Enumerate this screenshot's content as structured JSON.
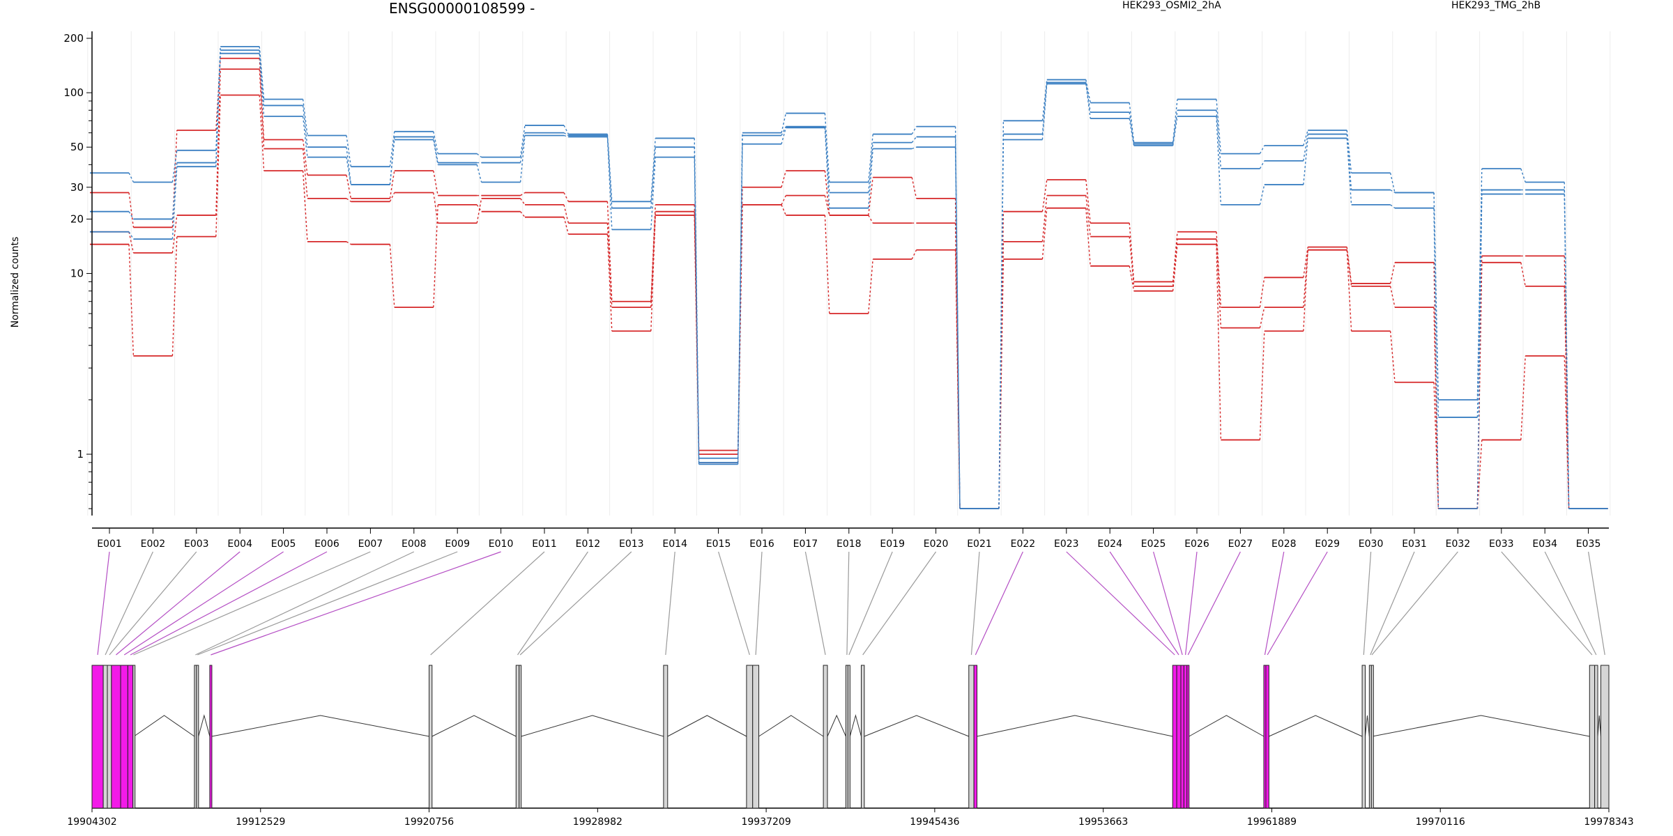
{
  "chart_data": {
    "type": "line",
    "title": "ENSG00000108599 -",
    "ylabel": "Normalized counts",
    "y_scale": "log",
    "y_ticks": [
      200,
      100,
      50,
      30,
      20,
      10,
      1
    ],
    "exons": [
      "E001",
      "E002",
      "E003",
      "E004",
      "E005",
      "E006",
      "E007",
      "E008",
      "E009",
      "E010",
      "E011",
      "E012",
      "E013",
      "E014",
      "E015",
      "E016",
      "E017",
      "E018",
      "E019",
      "E020",
      "E021",
      "E022",
      "E023",
      "E024",
      "E025",
      "E026",
      "E027",
      "E028",
      "E029",
      "E030",
      "E031",
      "E032",
      "E033",
      "E034",
      "E035"
    ],
    "grid": true,
    "legend": [
      {
        "name": "HEK293_OSMI2_2hA",
        "color": "#d62728",
        "position": "top"
      },
      {
        "name": "HEK293_TMG_2hB",
        "color": "#3a7fc2",
        "position": "top-right"
      }
    ],
    "series": [
      {
        "group": "HEK293_OSMI2_2hA",
        "color": "#d62728",
        "values": [
          28,
          18,
          62,
          155,
          55,
          35,
          26,
          37,
          27,
          27,
          28,
          25,
          7,
          24,
          1.05,
          30,
          37,
          21,
          34,
          26,
          0.5,
          22,
          33,
          19,
          9,
          17,
          6.5,
          9.5,
          14,
          8.8,
          11.5,
          0.5,
          12.5,
          12.5,
          0.5
        ]
      },
      {
        "group": "HEK293_OSMI2_2hA",
        "color": "#d62728",
        "values": [
          17,
          13,
          21,
          135,
          49,
          26,
          25,
          28,
          19,
          26,
          24,
          19,
          6.5,
          22,
          1.0,
          24,
          27,
          21,
          19,
          19,
          0.5,
          15,
          27,
          16,
          8.5,
          15.5,
          5,
          6.5,
          13.5,
          8.5,
          6.5,
          0.5,
          11.5,
          8.5,
          0.5
        ]
      },
      {
        "group": "HEK293_OSMI2_2hA",
        "color": "#d62728",
        "values": [
          14.5,
          3.5,
          16,
          97,
          37,
          15,
          14.5,
          6.5,
          24,
          22,
          20.5,
          16.5,
          4.8,
          21,
          0.9,
          24,
          21,
          6,
          12,
          13.5,
          0.5,
          12,
          23,
          11,
          8,
          14.5,
          1.2,
          4.8,
          13.5,
          4.8,
          2.5,
          0.5,
          1.2,
          3.5,
          0.5
        ]
      },
      {
        "group": "HEK293_TMG_2hB",
        "color": "#3a7fc2",
        "values": [
          36,
          32,
          48,
          180,
          92,
          58,
          39,
          61,
          46,
          44,
          66,
          59,
          25,
          56,
          0.95,
          60,
          77,
          32,
          59,
          65,
          0.5,
          70,
          118,
          88,
          53,
          92,
          46,
          51,
          62,
          36,
          28,
          2.0,
          38,
          32,
          0.5
        ]
      },
      {
        "group": "HEK293_TMG_2hB",
        "color": "#3a7fc2",
        "values": [
          22,
          20,
          41,
          172,
          85,
          50,
          31,
          57,
          41,
          41,
          60,
          58,
          23,
          50,
          0.9,
          58,
          65,
          28,
          53,
          57,
          0.5,
          59,
          114,
          78,
          52,
          80,
          38,
          42,
          59,
          29,
          28,
          1.6,
          29,
          29,
          0.5
        ]
      },
      {
        "group": "HEK293_TMG_2hB",
        "color": "#3a7fc2",
        "values": [
          17,
          15.5,
          39,
          165,
          74,
          44,
          31,
          55,
          40,
          32,
          58,
          57,
          17.5,
          44,
          0.88,
          52,
          64,
          23,
          49,
          50,
          0.5,
          55,
          112,
          72,
          51,
          74,
          24,
          31,
          56,
          24,
          23,
          0.5,
          27.5,
          27.5,
          0.5
        ]
      }
    ],
    "genomic_axis": {
      "start": 19904302,
      "end": 19978343,
      "tick_labels": [
        "19904302",
        "19912529",
        "19920756",
        "19928982",
        "19937209",
        "19945436",
        "19953663",
        "19961889",
        "19970116",
        "19978343"
      ]
    },
    "exon_coordinates": [
      {
        "id": "E001",
        "start": 19904302,
        "end": 19904850,
        "highlight": true
      },
      {
        "id": "E002",
        "start": 19904850,
        "end": 19905050,
        "highlight": false
      },
      {
        "id": "E003",
        "start": 19905050,
        "end": 19905250,
        "highlight": false
      },
      {
        "id": "E004",
        "start": 19905250,
        "end": 19905700,
        "highlight": true
      },
      {
        "id": "E005",
        "start": 19905700,
        "end": 19906050,
        "highlight": true
      },
      {
        "id": "E006",
        "start": 19906050,
        "end": 19906300,
        "highlight": true
      },
      {
        "id": "E007",
        "start": 19906300,
        "end": 19906350,
        "highlight": false
      },
      {
        "id": "E008",
        "start": 19909300,
        "end": 19909400,
        "highlight": false
      },
      {
        "id": "E009",
        "start": 19909400,
        "end": 19909500,
        "highlight": false
      },
      {
        "id": "E010",
        "start": 19910050,
        "end": 19910150,
        "highlight": true
      },
      {
        "id": "E011",
        "start": 19920756,
        "end": 19920900,
        "highlight": false
      },
      {
        "id": "E012",
        "start": 19925000,
        "end": 19925150,
        "highlight": false
      },
      {
        "id": "E013",
        "start": 19925150,
        "end": 19925250,
        "highlight": false
      },
      {
        "id": "E014",
        "start": 19932200,
        "end": 19932400,
        "highlight": false
      },
      {
        "id": "E015",
        "start": 19936250,
        "end": 19936550,
        "highlight": false
      },
      {
        "id": "E016",
        "start": 19936550,
        "end": 19936850,
        "highlight": false
      },
      {
        "id": "E017",
        "start": 19940000,
        "end": 19940200,
        "highlight": false
      },
      {
        "id": "E018",
        "start": 19941100,
        "end": 19941200,
        "highlight": false
      },
      {
        "id": "E019",
        "start": 19941200,
        "end": 19941300,
        "highlight": false
      },
      {
        "id": "E020",
        "start": 19941850,
        "end": 19942000,
        "highlight": false
      },
      {
        "id": "E021",
        "start": 19947100,
        "end": 19947350,
        "highlight": false
      },
      {
        "id": "E022",
        "start": 19947350,
        "end": 19947500,
        "highlight": true
      },
      {
        "id": "E023",
        "start": 19957050,
        "end": 19957250,
        "highlight": true
      },
      {
        "id": "E024",
        "start": 19957250,
        "end": 19957450,
        "highlight": true
      },
      {
        "id": "E025",
        "start": 19957450,
        "end": 19957600,
        "highlight": true
      },
      {
        "id": "E026",
        "start": 19957600,
        "end": 19957750,
        "highlight": true
      },
      {
        "id": "E027",
        "start": 19957750,
        "end": 19957850,
        "highlight": true
      },
      {
        "id": "E028",
        "start": 19961500,
        "end": 19961600,
        "highlight": true
      },
      {
        "id": "E029",
        "start": 19961600,
        "end": 19961750,
        "highlight": true
      },
      {
        "id": "E030",
        "start": 19966300,
        "end": 19966450,
        "highlight": false
      },
      {
        "id": "E031",
        "start": 19966650,
        "end": 19966750,
        "highlight": false
      },
      {
        "id": "E032",
        "start": 19966750,
        "end": 19966800,
        "highlight": false
      },
      {
        "id": "E033",
        "start": 19977400,
        "end": 19977650,
        "highlight": false
      },
      {
        "id": "E034",
        "start": 19977650,
        "end": 19977800,
        "highlight": false
      },
      {
        "id": "E035",
        "start": 19977950,
        "end": 19978343,
        "highlight": false
      }
    ]
  }
}
